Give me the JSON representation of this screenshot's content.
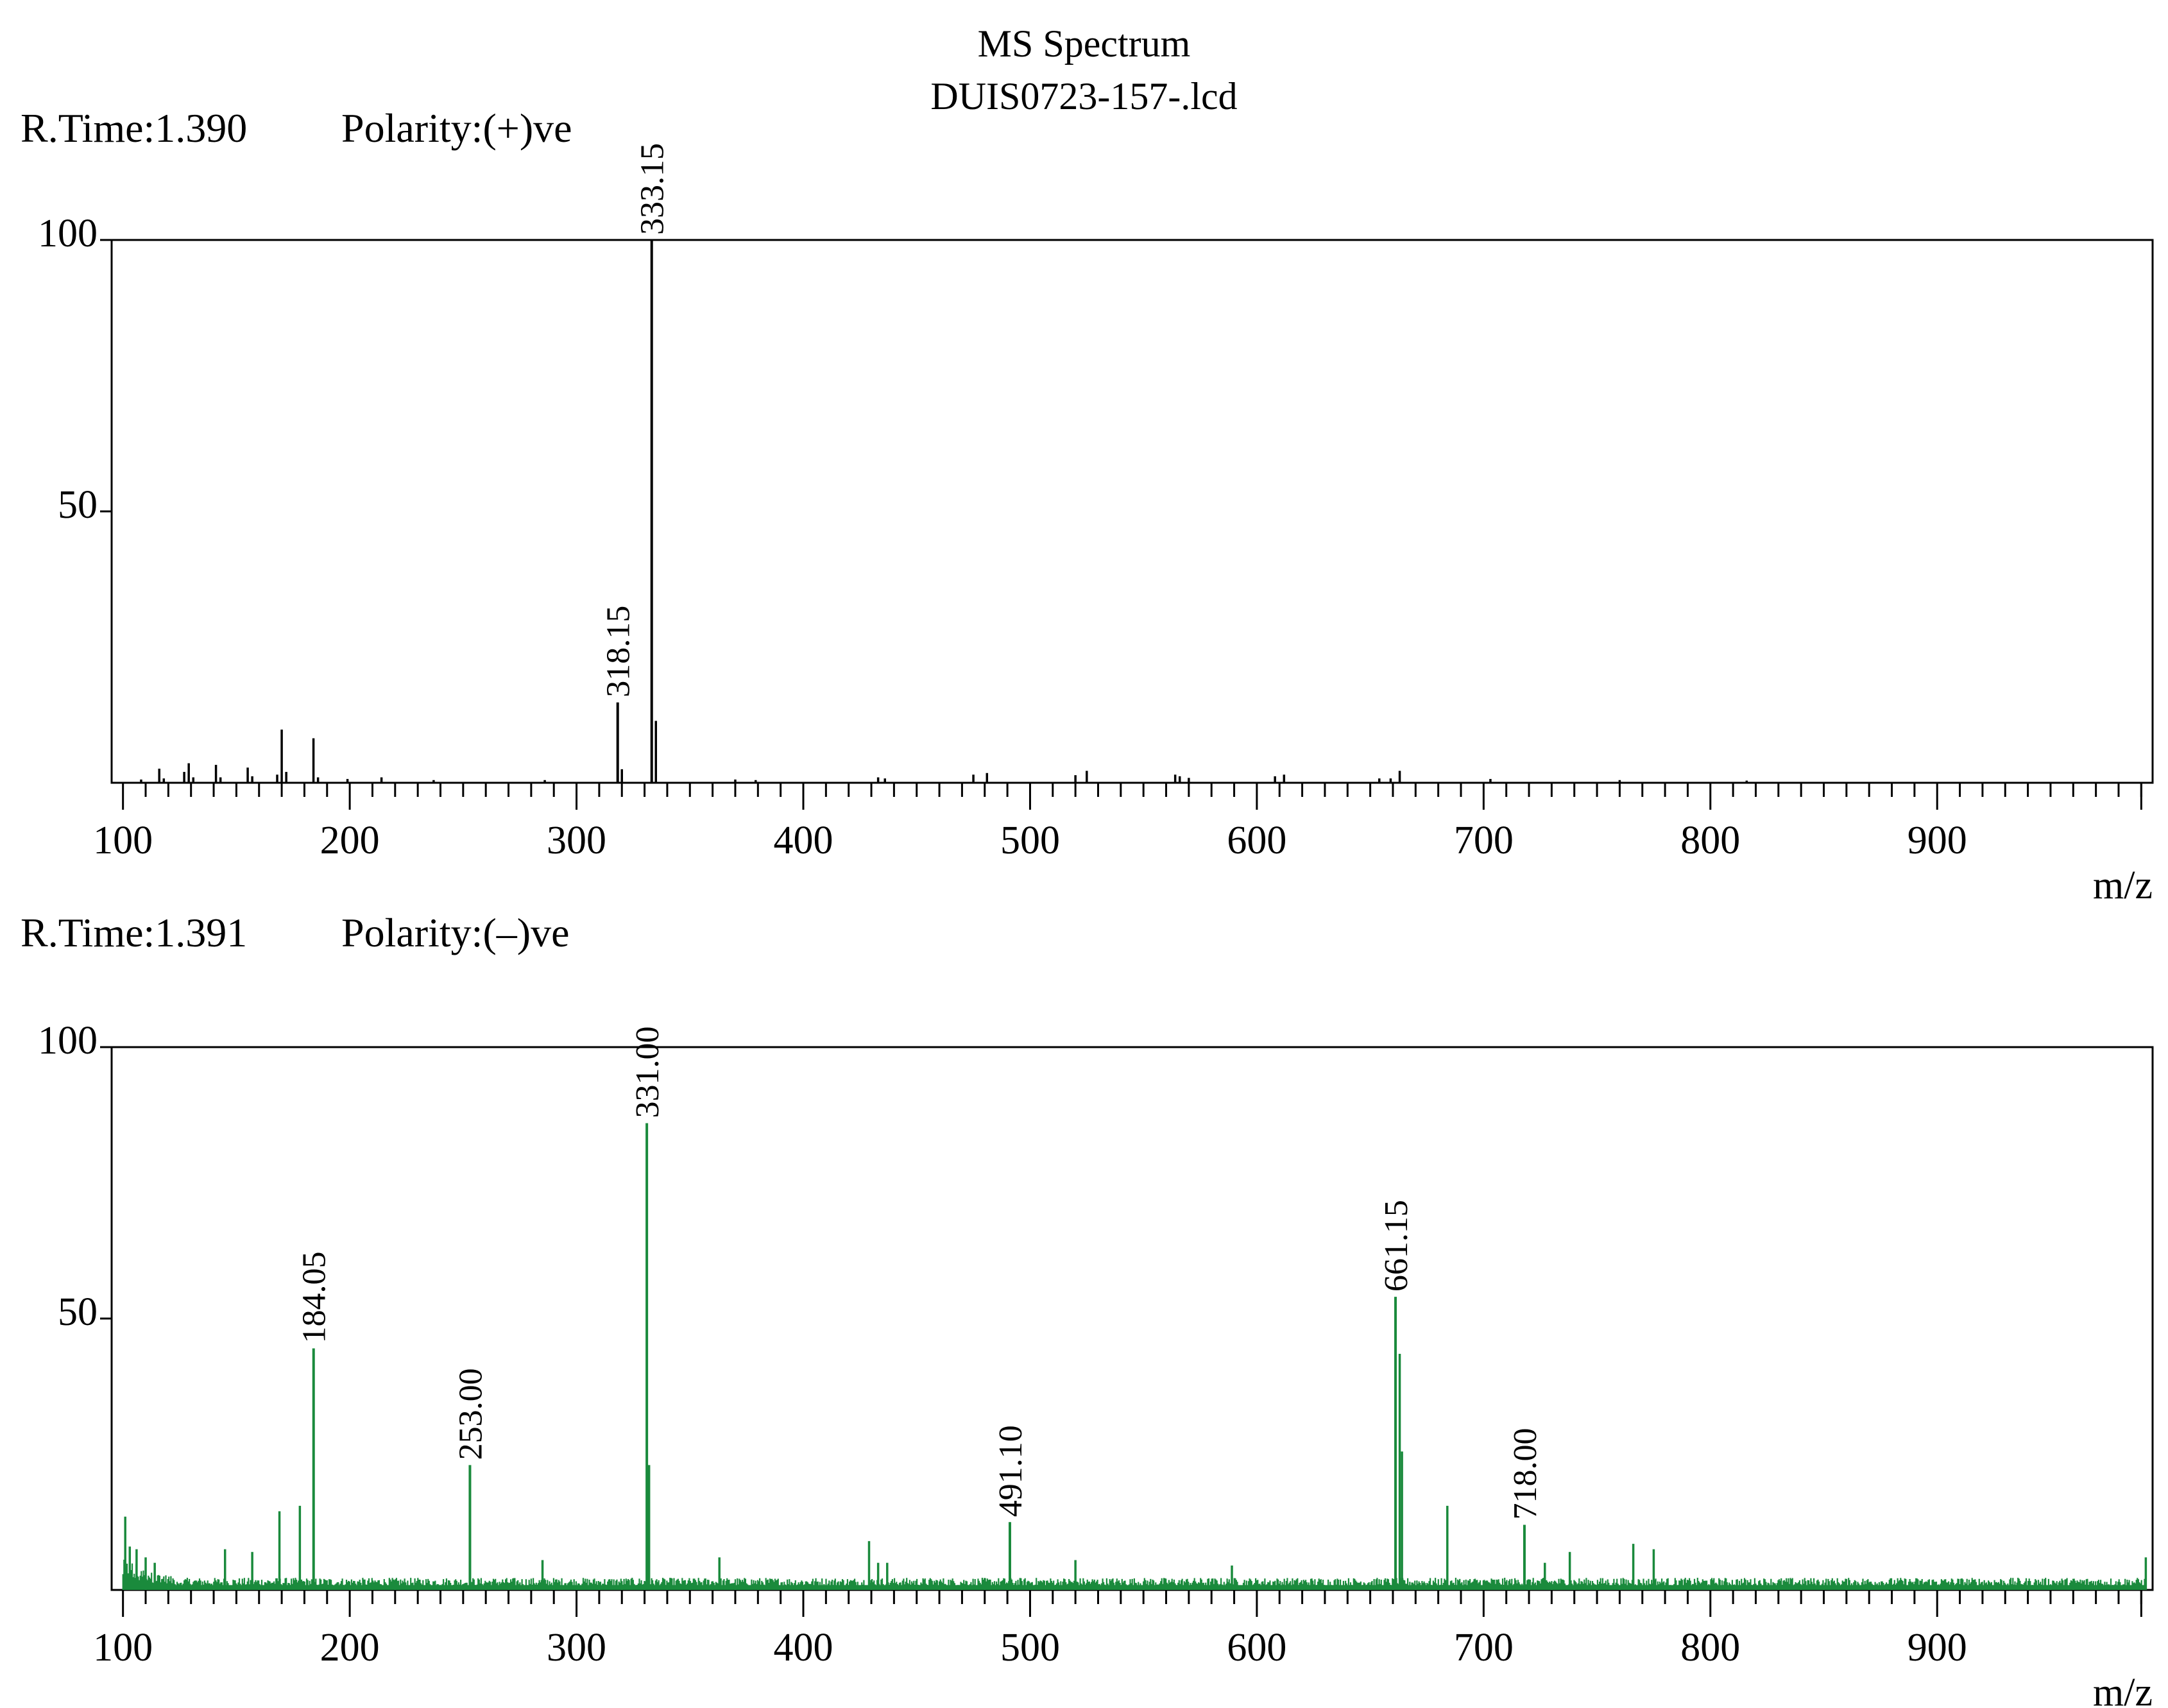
{
  "header": {
    "title": "MS Spectrum",
    "subtitle": "DUIS0723-157-.lcd"
  },
  "chart_data": [
    {
      "type": "bar",
      "rtime_label": "R.Time:1.390",
      "polarity_label": "Polarity:(+)ve",
      "xlabel": "m/z",
      "xlim": [
        95,
        995
      ],
      "ylim": [
        0,
        100
      ],
      "xticks": [
        100,
        200,
        300,
        400,
        500,
        600,
        700,
        800,
        900
      ],
      "yticks": [
        100,
        50
      ],
      "color": "#000000",
      "peaks": [
        {
          "mz": 108,
          "intensity": 0.6
        },
        {
          "mz": 116,
          "intensity": 2.6
        },
        {
          "mz": 118,
          "intensity": 0.8
        },
        {
          "mz": 127,
          "intensity": 2.0
        },
        {
          "mz": 129,
          "intensity": 3.6
        },
        {
          "mz": 131,
          "intensity": 1.0
        },
        {
          "mz": 141,
          "intensity": 3.3
        },
        {
          "mz": 143,
          "intensity": 1.0
        },
        {
          "mz": 155,
          "intensity": 2.8
        },
        {
          "mz": 157,
          "intensity": 1.2
        },
        {
          "mz": 168,
          "intensity": 1.5
        },
        {
          "mz": 170,
          "intensity": 9.8
        },
        {
          "mz": 172,
          "intensity": 2.0
        },
        {
          "mz": 184,
          "intensity": 8.2
        },
        {
          "mz": 186,
          "intensity": 1.0
        },
        {
          "mz": 199,
          "intensity": 0.7
        },
        {
          "mz": 214,
          "intensity": 1.0
        },
        {
          "mz": 237,
          "intensity": 0.5
        },
        {
          "mz": 286,
          "intensity": 0.5
        },
        {
          "mz": 318.15,
          "intensity": 14.8,
          "label": "318.15"
        },
        {
          "mz": 320,
          "intensity": 2.5
        },
        {
          "mz": 333.15,
          "intensity": 100,
          "label": "333.15"
        },
        {
          "mz": 335,
          "intensity": 11.4
        },
        {
          "mz": 370,
          "intensity": 0.6
        },
        {
          "mz": 379,
          "intensity": 0.5
        },
        {
          "mz": 433,
          "intensity": 1.0
        },
        {
          "mz": 436,
          "intensity": 0.8
        },
        {
          "mz": 475,
          "intensity": 1.5
        },
        {
          "mz": 481,
          "intensity": 1.8
        },
        {
          "mz": 520,
          "intensity": 1.4
        },
        {
          "mz": 525,
          "intensity": 2.2
        },
        {
          "mz": 564,
          "intensity": 1.5
        },
        {
          "mz": 566,
          "intensity": 1.2
        },
        {
          "mz": 570,
          "intensity": 0.9
        },
        {
          "mz": 608,
          "intensity": 1.2
        },
        {
          "mz": 612,
          "intensity": 1.5
        },
        {
          "mz": 654,
          "intensity": 0.8
        },
        {
          "mz": 659,
          "intensity": 0.8
        },
        {
          "mz": 663,
          "intensity": 2.2
        },
        {
          "mz": 703,
          "intensity": 0.7
        },
        {
          "mz": 760,
          "intensity": 0.5
        },
        {
          "mz": 816,
          "intensity": 0.4
        }
      ]
    },
    {
      "type": "bar",
      "rtime_label": "R.Time:1.391",
      "polarity_label": "Polarity:(–)ve",
      "xlabel": "m/z",
      "xlim": [
        95,
        995
      ],
      "ylim": [
        0,
        100
      ],
      "xticks": [
        100,
        200,
        300,
        400,
        500,
        600,
        700,
        800,
        900
      ],
      "yticks": [
        100,
        50
      ],
      "color": "#1a8a3c",
      "noise_level": 1.8,
      "peaks": [
        {
          "mz": 101,
          "intensity": 13.5
        },
        {
          "mz": 103,
          "intensity": 8.0
        },
        {
          "mz": 106,
          "intensity": 7.5
        },
        {
          "mz": 110,
          "intensity": 6.0
        },
        {
          "mz": 114,
          "intensity": 5.0
        },
        {
          "mz": 145,
          "intensity": 7.5
        },
        {
          "mz": 157,
          "intensity": 7.0
        },
        {
          "mz": 169,
          "intensity": 14.5
        },
        {
          "mz": 178,
          "intensity": 15.5
        },
        {
          "mz": 184.05,
          "intensity": 44.5,
          "label": "184.05"
        },
        {
          "mz": 253.0,
          "intensity": 23.0,
          "label": "253.00"
        },
        {
          "mz": 285,
          "intensity": 5.5
        },
        {
          "mz": 331.0,
          "intensity": 86.0,
          "label": "331.00"
        },
        {
          "mz": 332,
          "intensity": 23.0
        },
        {
          "mz": 363,
          "intensity": 6.0
        },
        {
          "mz": 429,
          "intensity": 9.0
        },
        {
          "mz": 433,
          "intensity": 5.0
        },
        {
          "mz": 437,
          "intensity": 5.0
        },
        {
          "mz": 491.1,
          "intensity": 12.5,
          "label": "491.10"
        },
        {
          "mz": 520,
          "intensity": 5.5
        },
        {
          "mz": 589,
          "intensity": 4.5
        },
        {
          "mz": 661.15,
          "intensity": 54.0,
          "label": "661.15"
        },
        {
          "mz": 663,
          "intensity": 43.5
        },
        {
          "mz": 664,
          "intensity": 25.5
        },
        {
          "mz": 684,
          "intensity": 15.5
        },
        {
          "mz": 718.0,
          "intensity": 12.0,
          "label": "718.00"
        },
        {
          "mz": 727,
          "intensity": 5.0
        },
        {
          "mz": 738,
          "intensity": 7.0
        },
        {
          "mz": 766,
          "intensity": 8.5
        },
        {
          "mz": 775,
          "intensity": 7.5
        },
        {
          "mz": 992,
          "intensity": 6.0
        }
      ]
    }
  ]
}
